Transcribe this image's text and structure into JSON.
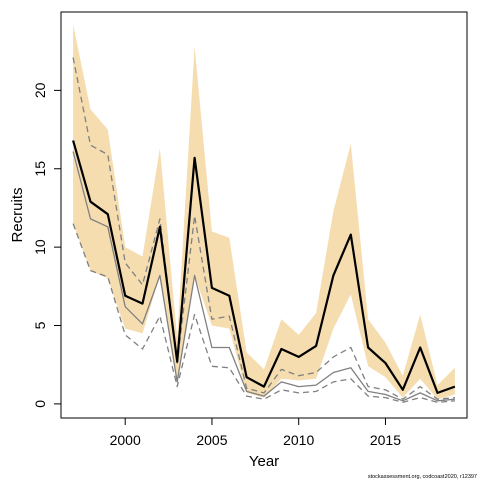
{
  "chart_data": {
    "type": "line",
    "title": "",
    "xlabel": "Year",
    "ylabel": "Recruits",
    "xlim": [
      1996.3,
      2019.7
    ],
    "ylim": [
      -0.9,
      25.0
    ],
    "xticks": [
      2000,
      2005,
      2010,
      2015
    ],
    "yticks": [
      0,
      5,
      10,
      15,
      20
    ],
    "grid": false,
    "legend": "none",
    "x": [
      1997,
      1998,
      1999,
      2000,
      2001,
      2002,
      2003,
      2004,
      2005,
      2006,
      2007,
      2008,
      2009,
      2010,
      2011,
      2012,
      2013,
      2014,
      2015,
      2016,
      2017,
      2018,
      2019
    ],
    "band": {
      "color": "#f5ddb0",
      "lower": [
        11.5,
        8.5,
        8.0,
        4.8,
        4.5,
        8.2,
        1.4,
        8.2,
        5.0,
        4.8,
        0.7,
        0.4,
        1.6,
        1.5,
        1.6,
        4.8,
        7.0,
        2.4,
        1.7,
        0.4,
        1.6,
        0.3,
        0.6
      ],
      "upper": [
        24.2,
        18.8,
        17.5,
        10.0,
        9.4,
        16.3,
        4.2,
        22.8,
        11.0,
        10.6,
        3.3,
        2.2,
        5.4,
        4.4,
        5.8,
        12.3,
        16.6,
        5.4,
        3.9,
        1.8,
        5.7,
        1.2,
        2.3
      ]
    },
    "series": [
      {
        "role": "estimate",
        "color": "#000000",
        "width": 2.2,
        "dash": "",
        "values": [
          16.8,
          12.9,
          12.1,
          6.9,
          6.4,
          11.3,
          2.7,
          15.7,
          7.4,
          6.9,
          1.7,
          1.1,
          3.5,
          3.0,
          3.7,
          8.2,
          10.8,
          3.6,
          2.6,
          0.9,
          3.6,
          0.7,
          1.1
        ]
      },
      {
        "role": "comparison",
        "color": "#808080",
        "width": 1.3,
        "dash": "",
        "values": [
          16.1,
          11.8,
          11.3,
          6.2,
          5.1,
          8.2,
          1.4,
          8.2,
          3.6,
          3.6,
          0.8,
          0.5,
          1.4,
          1.1,
          1.2,
          2.0,
          2.3,
          0.8,
          0.6,
          0.2,
          0.7,
          0.2,
          0.3
        ]
      },
      {
        "role": "comparison-upper",
        "color": "#808080",
        "width": 1.3,
        "dash": "6,4",
        "values": [
          22.1,
          16.5,
          15.9,
          9.0,
          7.6,
          11.8,
          2.6,
          12.0,
          5.4,
          5.6,
          1.0,
          0.7,
          2.2,
          1.8,
          2.0,
          3.0,
          3.6,
          1.1,
          0.9,
          0.3,
          1.1,
          0.3,
          0.4
        ]
      },
      {
        "role": "comparison-lower",
        "color": "#808080",
        "width": 1.3,
        "dash": "6,4",
        "values": [
          11.5,
          8.5,
          8.1,
          4.4,
          3.5,
          5.6,
          1.1,
          5.7,
          2.4,
          2.3,
          0.5,
          0.3,
          0.9,
          0.7,
          0.8,
          1.4,
          1.6,
          0.5,
          0.4,
          0.1,
          0.4,
          0.1,
          0.2
        ]
      }
    ]
  },
  "footer": {
    "credit": "stockassessment.org, codcoast2020, r12397"
  }
}
